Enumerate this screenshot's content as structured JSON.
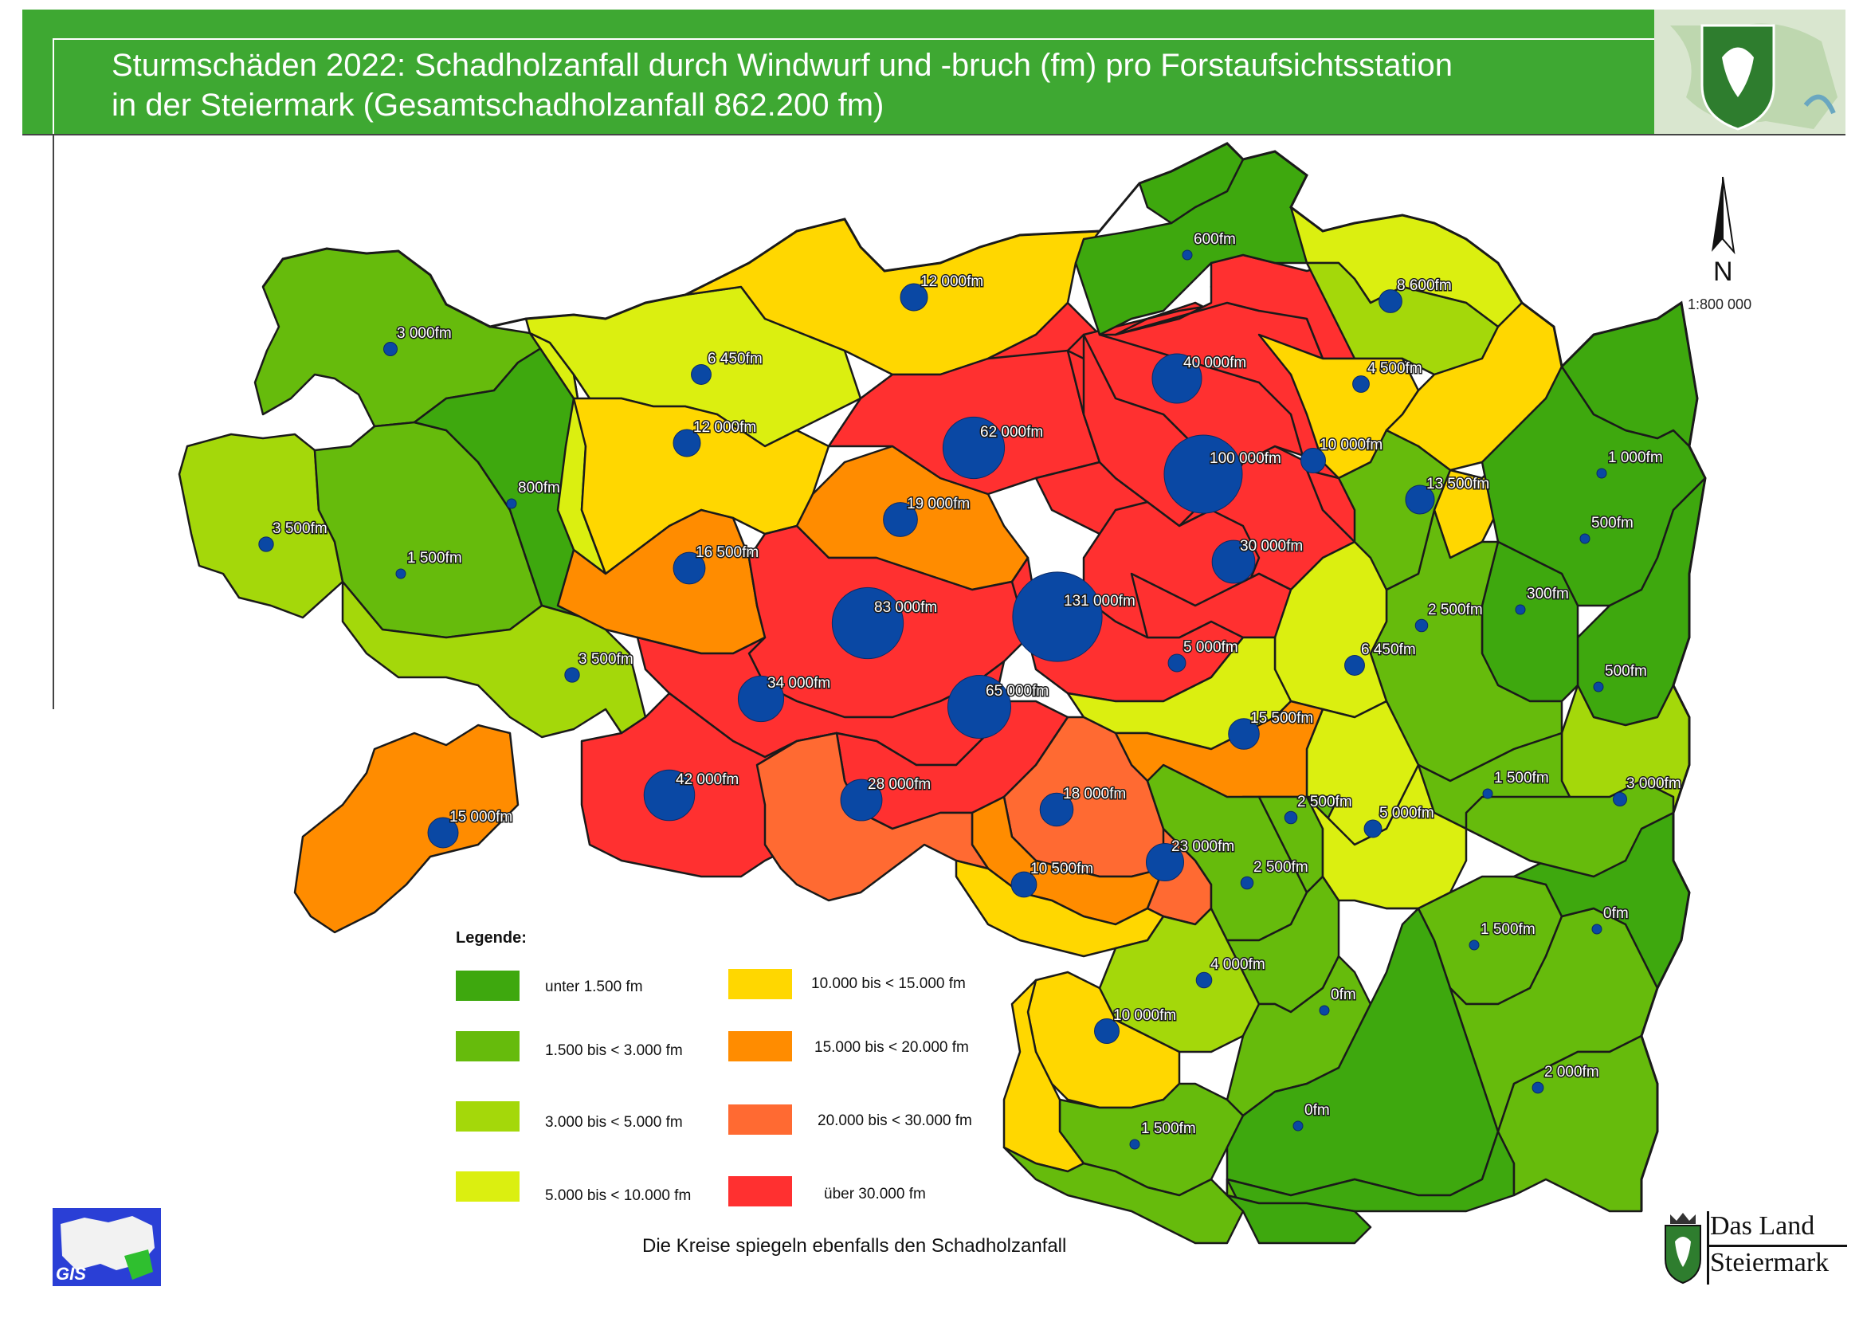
{
  "title": {
    "line1": "Sturmschäden 2022: Schadholzanfall durch Windwurf und -bruch (fm) pro Forstaufsichtsstation",
    "line2": "in der Steiermark (Gesamtschadholzanfall 862.200 fm)"
  },
  "north_label": "N",
  "scale": "1:800 000",
  "legend": {
    "title": "Legende:",
    "items": [
      {
        "label": "unter  1.500 fm",
        "color": "#3ea80e"
      },
      {
        "label": "1.500 bis <  3.000 fm",
        "color": "#66bb0c"
      },
      {
        "label": "3.000 bis <  5.000 fm",
        "color": "#a4d80a"
      },
      {
        "label": "5.000 bis < 10.000 fm",
        "color": "#dbef10"
      },
      {
        "label": "10.000 bis < 15.000 fm",
        "color": "#ffd700"
      },
      {
        "label": "15.000 bis < 20.000 fm",
        "color": "#ff8c00"
      },
      {
        "label": "20.000 bis < 30.000 fm",
        "color": "#ff6a32"
      },
      {
        "label": "über 30.000 fm",
        "color": "#ff3030"
      }
    ]
  },
  "footnote": "Die Kreise spiegeln ebenfalls den Schadholzanfall",
  "logos": {
    "gis": "GIS",
    "land_line1": "Das Land",
    "land_line2": "Steiermark"
  },
  "colors": {
    "header_green": "#3ea832",
    "circle_blue": "#0a48a4"
  },
  "stations": [
    {
      "label": "600fm",
      "value": 600
    },
    {
      "label": "12 000fm",
      "value": 12000
    },
    {
      "label": "3 000fm",
      "value": 3000
    },
    {
      "label": "6 450fm",
      "value": 6450
    },
    {
      "label": "8 600fm",
      "value": 8600
    },
    {
      "label": "40 000fm",
      "value": 40000
    },
    {
      "label": "4 500fm",
      "value": 4500
    },
    {
      "label": "12 000fm",
      "value": 12000
    },
    {
      "label": "62 000fm",
      "value": 62000
    },
    {
      "label": "100 000fm",
      "value": 100000
    },
    {
      "label": "10 000fm",
      "value": 10000
    },
    {
      "label": "1 000fm",
      "value": 1000
    },
    {
      "label": "800fm",
      "value": 800
    },
    {
      "label": "3 500fm",
      "value": 3500
    },
    {
      "label": "19 000fm",
      "value": 19000
    },
    {
      "label": "13 500fm",
      "value": 13500
    },
    {
      "label": "1 500fm",
      "value": 1500
    },
    {
      "label": "16 500fm",
      "value": 16500
    },
    {
      "label": "30 000fm",
      "value": 30000
    },
    {
      "label": "500fm",
      "value": 500
    },
    {
      "label": "83 000fm",
      "value": 83000
    },
    {
      "label": "131 000fm",
      "value": 131000
    },
    {
      "label": "300fm",
      "value": 300
    },
    {
      "label": "2 500fm",
      "value": 2500
    },
    {
      "label": "3 500fm",
      "value": 3500
    },
    {
      "label": "5 000fm",
      "value": 5000
    },
    {
      "label": "6 450fm",
      "value": 6450
    },
    {
      "label": "500fm",
      "value": 500
    },
    {
      "label": "34 000fm",
      "value": 34000
    },
    {
      "label": "65 000fm",
      "value": 65000
    },
    {
      "label": "15 500fm",
      "value": 15500
    },
    {
      "label": "1 500fm",
      "value": 1500
    },
    {
      "label": "3 000fm",
      "value": 3000
    },
    {
      "label": "15 000fm",
      "value": 15000
    },
    {
      "label": "42 000fm",
      "value": 42000
    },
    {
      "label": "28 000fm",
      "value": 28000
    },
    {
      "label": "18 000fm",
      "value": 18000
    },
    {
      "label": "2 500fm",
      "value": 2500
    },
    {
      "label": "5 000fm",
      "value": 5000
    },
    {
      "label": "23 000fm",
      "value": 23000
    },
    {
      "label": "10 500fm",
      "value": 10500
    },
    {
      "label": "2 500fm",
      "value": 2500
    },
    {
      "label": "0fm",
      "value": 0
    },
    {
      "label": "1 500fm",
      "value": 1500
    },
    {
      "label": "4 000fm",
      "value": 4000
    },
    {
      "label": "10 000fm",
      "value": 10000
    },
    {
      "label": "0fm",
      "value": 0
    },
    {
      "label": "2 000fm",
      "value": 2000
    },
    {
      "label": "1 500fm",
      "value": 1500
    },
    {
      "label": "0fm",
      "value": 0
    }
  ]
}
